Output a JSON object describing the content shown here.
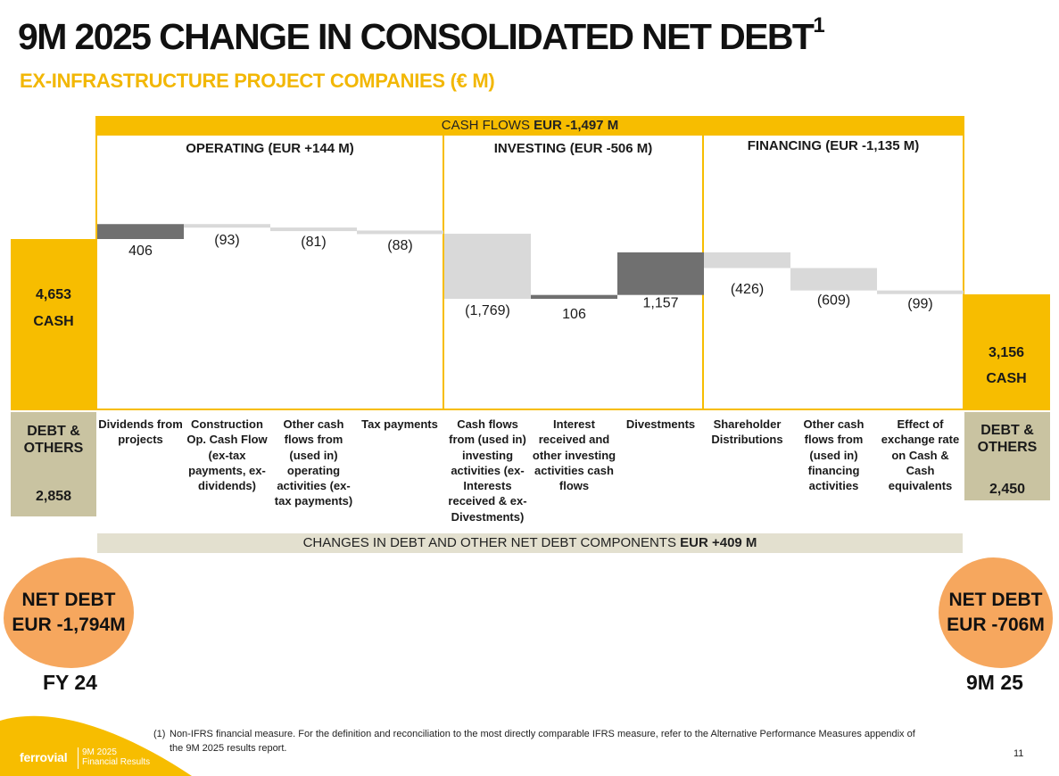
{
  "header": {
    "title": "9M 2025 CHANGE IN CONSOLIDATED NET DEBT",
    "title_superscript": "1",
    "subtitle": "EX-INFRASTRUCTURE PROJECT COMPANIES (€ M)"
  },
  "cash_flows_bar": {
    "label": "CASH FLOWS",
    "value": "EUR -1,497 M"
  },
  "sections": {
    "operating": "OPERATING (EUR +144 M)",
    "investing": "INVESTING  (EUR -506 M)",
    "financing": "FINANCING (EUR -1,135 M)"
  },
  "start": {
    "cash_value": "4,653",
    "cash_label": "CASH",
    "debt_label_1": "DEBT &",
    "debt_label_2": "OTHERS",
    "debt_value": "2,858",
    "net_debt_line1": "NET DEBT",
    "net_debt_line2": "EUR -1,794M",
    "period": "FY 24"
  },
  "end": {
    "cash_value": "3,156",
    "cash_label": "CASH",
    "debt_label_1": "DEBT &",
    "debt_label_2": "OTHERS",
    "debt_value": "2,450",
    "net_debt_line1": "NET DEBT",
    "net_debt_line2": "EUR -706M",
    "period": "9M 25"
  },
  "changes_bar": {
    "label": "CHANGES IN DEBT AND OTHER NET DEBT COMPONENTS",
    "value": "EUR +409 M"
  },
  "chart_data": {
    "type": "bar",
    "subtype": "waterfall",
    "title": "9M 2025 CHANGE IN CONSOLIDATED NET DEBT",
    "start_value": 4653,
    "end_value": 3156,
    "categories": [
      "Dividends from projects",
      "Construction Op. Cash Flow (ex-tax payments, ex-dividends)",
      "Other cash flows from (used in) operating activities (ex-tax payments)",
      "Tax payments",
      "Cash flows from (used in) investing activities (ex-Interests received & ex-Divestments)",
      "Interest received and other investing activities cash flows",
      "Divestments",
      "Shareholder Distributions",
      "Other cash flows from (used in) financing activities",
      "Effect of exchange rate on Cash & Cash equivalents"
    ],
    "values": [
      406,
      -93,
      -81,
      -88,
      -1769,
      106,
      1157,
      -426,
      -609,
      -99
    ],
    "labels": [
      "406",
      "(93)",
      "(81)",
      "(88)",
      "(1,769)",
      "106",
      "1,157",
      "(426)",
      "(609)",
      "(99)"
    ],
    "colors": {
      "positive": "#707070",
      "negative": "#d9d9d9",
      "cash": "#f7bd00",
      "debt": "#c9c3a1",
      "net_debt": "#f6a75e"
    }
  },
  "footnote": {
    "marker": "(1)",
    "line1": "Non-IFRS financial measure. For the definition and reconciliation to the most directly comparable IFRS measure, refer to the Alternative Performance Measures appendix of",
    "line2": "the 9M 2025 results report."
  },
  "footer": {
    "logo": "ferrovial",
    "logo_sub_1": "9M 2025",
    "logo_sub_2": "Financial Results",
    "page_number": "11"
  }
}
